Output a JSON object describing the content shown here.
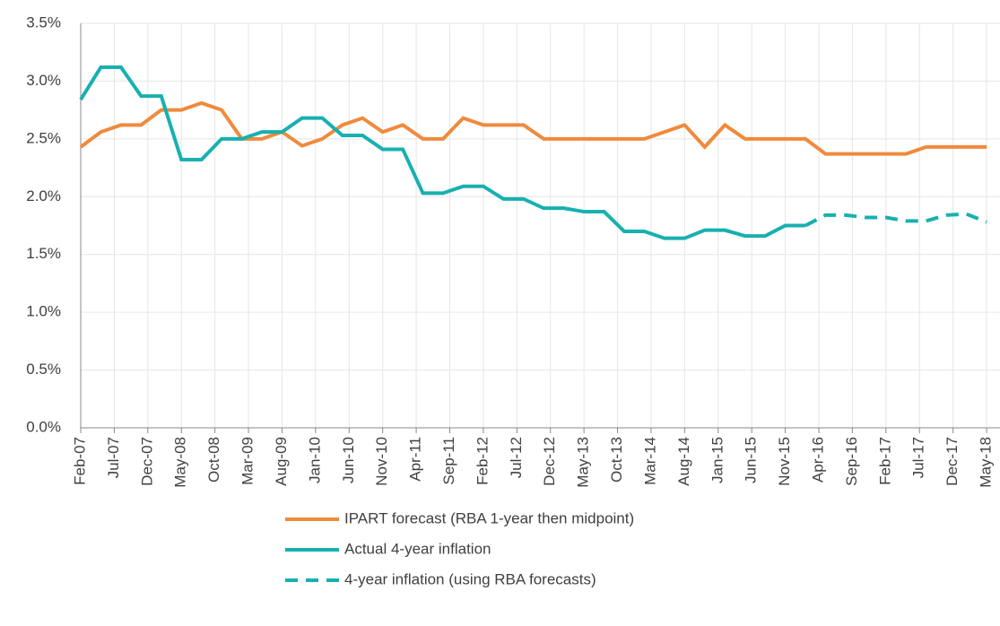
{
  "chart_data": {
    "type": "line",
    "x": [
      "Feb-07",
      "May-07",
      "Aug-07",
      "Nov-07",
      "Feb-08",
      "May-08",
      "Aug-08",
      "Nov-08",
      "Feb-09",
      "May-09",
      "Aug-09",
      "Nov-09",
      "Feb-10",
      "May-10",
      "Aug-10",
      "Nov-10",
      "Feb-11",
      "May-11",
      "Aug-11",
      "Nov-11",
      "Feb-12",
      "May-12",
      "Aug-12",
      "Nov-12",
      "Feb-13",
      "May-13",
      "Aug-13",
      "Nov-13",
      "Feb-14",
      "May-14",
      "Aug-14",
      "Nov-14",
      "Feb-15",
      "May-15",
      "Aug-15",
      "Nov-15",
      "Feb-16",
      "May-16",
      "Aug-16",
      "Nov-16",
      "Feb-17",
      "May-17",
      "Aug-17",
      "Nov-17",
      "Feb-18",
      "May-18"
    ],
    "xlim": [
      "Feb-07",
      "Jul-18"
    ],
    "xticks": [
      "Feb-07",
      "Jul-07",
      "Dec-07",
      "May-08",
      "Oct-08",
      "Mar-09",
      "Aug-09",
      "Jan-10",
      "Jun-10",
      "Nov-10",
      "Apr-11",
      "Sep-11",
      "Feb-12",
      "Jul-12",
      "Dec-12",
      "May-13",
      "Oct-13",
      "Mar-14",
      "Aug-14",
      "Jan-15",
      "Jun-15",
      "Nov-15",
      "Apr-16",
      "Sep-16",
      "Feb-17",
      "Jul-17",
      "Dec-17",
      "May-18"
    ],
    "ylim": [
      0,
      3.5
    ],
    "yticks": [
      {
        "value": 0,
        "label": "0.0%"
      },
      {
        "value": 0.5,
        "label": "0.5%"
      },
      {
        "value": 1,
        "label": "1.0%"
      },
      {
        "value": 1.5,
        "label": "1.5%"
      },
      {
        "value": 2,
        "label": "2.0%"
      },
      {
        "value": 2.5,
        "label": "2.5%"
      },
      {
        "value": 3,
        "label": "3.0%"
      },
      {
        "value": 3.5,
        "label": "3.5%"
      }
    ],
    "grid": true,
    "series": [
      {
        "name": "IPART forecast (RBA 1-year then midpoint)",
        "color": "#f08a3c",
        "dash": false,
        "values": [
          2.43,
          2.56,
          2.62,
          2.62,
          2.75,
          2.75,
          2.81,
          2.75,
          2.5,
          2.5,
          2.56,
          2.44,
          2.5,
          2.62,
          2.68,
          2.56,
          2.62,
          2.5,
          2.5,
          2.68,
          2.62,
          2.62,
          2.62,
          2.5,
          2.5,
          2.5,
          2.5,
          2.5,
          2.5,
          2.56,
          2.62,
          2.43,
          2.62,
          2.5,
          2.5,
          2.5,
          2.5,
          2.37,
          2.37,
          2.37,
          2.37,
          2.37,
          2.43,
          2.43,
          2.43,
          2.43
        ]
      },
      {
        "name": "Actual 4-year inflation",
        "color": "#18b0b0",
        "dash": false,
        "values": [
          2.84,
          3.12,
          3.12,
          2.87,
          2.87,
          2.32,
          2.32,
          2.5,
          2.5,
          2.56,
          2.56,
          2.68,
          2.68,
          2.53,
          2.53,
          2.41,
          2.41,
          2.03,
          2.03,
          2.09,
          2.09,
          1.98,
          1.98,
          1.9,
          1.9,
          1.87,
          1.87,
          1.7,
          1.7,
          1.64,
          1.64,
          1.71,
          1.71,
          1.66,
          1.66,
          1.75,
          1.75,
          null,
          null,
          null,
          null,
          null,
          null,
          null,
          null,
          null
        ]
      },
      {
        "name": "4-year inflation (using RBA forecasts)",
        "color": "#18b0b0",
        "dash": true,
        "values": [
          null,
          null,
          null,
          null,
          null,
          null,
          null,
          null,
          null,
          null,
          null,
          null,
          null,
          null,
          null,
          null,
          null,
          null,
          null,
          null,
          null,
          null,
          null,
          null,
          null,
          null,
          null,
          null,
          null,
          null,
          null,
          null,
          null,
          null,
          null,
          null,
          1.75,
          1.84,
          1.84,
          1.82,
          1.82,
          1.79,
          1.79,
          1.84,
          1.85,
          1.78
        ]
      }
    ]
  }
}
